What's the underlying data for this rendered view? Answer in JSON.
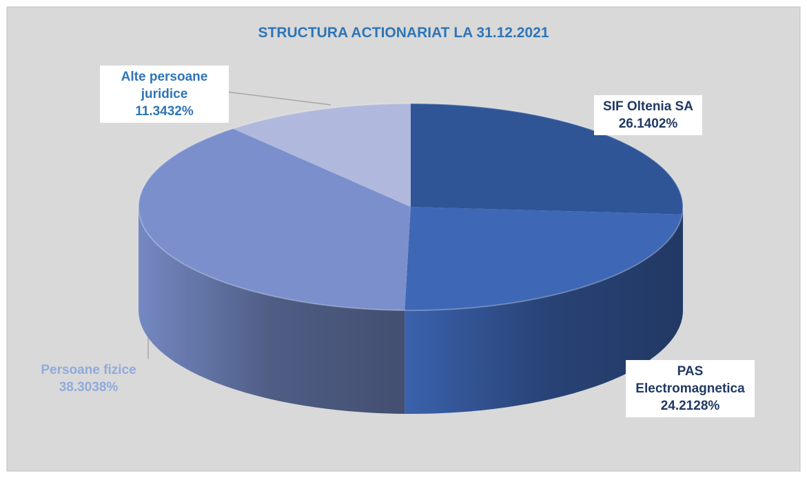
{
  "chart_data": {
    "type": "pie",
    "title": "STRUCTURA ACTIONARIAT LA 31.12.2021",
    "categories": [
      "SIF Oltenia SA",
      "PAS Electromagnetica",
      "Persoane fizice",
      "Alte persoane juridice"
    ],
    "values": [
      26.1402,
      24.2128,
      38.3038,
      11.3432
    ],
    "value_labels": [
      "26.1402%",
      "24.2128%",
      "38.3038%",
      "11.3432%"
    ],
    "colors": [
      "#2f5597",
      "#3e67b6",
      "#7a8fcc",
      "#b0b9dd"
    ]
  }
}
